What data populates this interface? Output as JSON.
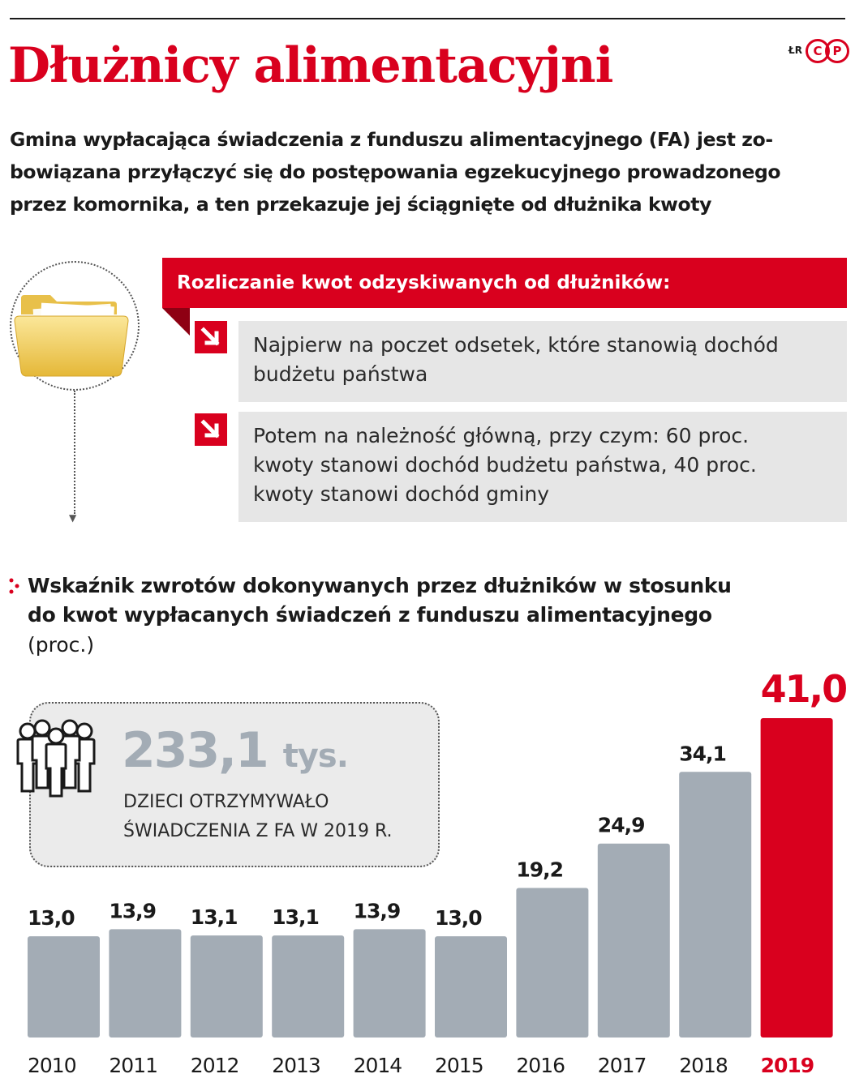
{
  "header": {
    "title": "Dłużnicy alimentacyjni",
    "credit": "ŁR",
    "badge_c": "C",
    "badge_p": "P"
  },
  "lead": {
    "line1": "Gmina wypłacająca świadczenia z funduszu alimentacyjnego (FA) jest zo-",
    "line2": "bowiązana przyłączyć się do postępowania egzekucyjnego prowadzonego",
    "line3": "przez komornika, a ten przekazuje jej ściągnięte od dłużnika kwoty"
  },
  "rules": {
    "heading": "Rozliczanie kwot odzyskiwanych od dłużników:",
    "item1_line1": "Najpierw na poczet odsetek, które stanowią dochód",
    "item1_line2": "budżetu państwa",
    "item2_line1": "Potem na należność główną, przy czym: 60 proc.",
    "item2_line2": "kwoty stanowi dochód budżetu państwa, 40 proc.",
    "item2_line3": "kwoty stanowi dochód gminy"
  },
  "info": {
    "number": "233,1",
    "unit": "tys.",
    "caption_line1": "DZIECI OTRZYMYWAŁO",
    "caption_line2": "ŚWIADCZENIA Z FA W 2019 R."
  },
  "chart_data": {
    "type": "bar",
    "title_line1": "Wskaźnik zwrotów dokonywanych przez dłużników w stosunku",
    "title_line2": "do kwot wypłacanych świadczeń z funduszu alimentacyjnego",
    "unit": "(proc.)",
    "categories": [
      "2010",
      "2011",
      "2012",
      "2013",
      "2014",
      "2015",
      "2016",
      "2017",
      "2018",
      "2019"
    ],
    "values": [
      13.0,
      13.9,
      13.1,
      13.1,
      13.9,
      13.0,
      19.2,
      24.9,
      34.1,
      41.0
    ],
    "value_labels": [
      "13,0",
      "13,9",
      "13,1",
      "13,1",
      "13,9",
      "13,0",
      "19,2",
      "24,9",
      "34,1",
      "41,0"
    ],
    "highlight_index": 9,
    "colors": {
      "bar": "#a3acb5",
      "highlight": "#d9001e",
      "text": "#1a1a1a"
    },
    "ylim": [
      0,
      41.0
    ],
    "grid": false
  }
}
